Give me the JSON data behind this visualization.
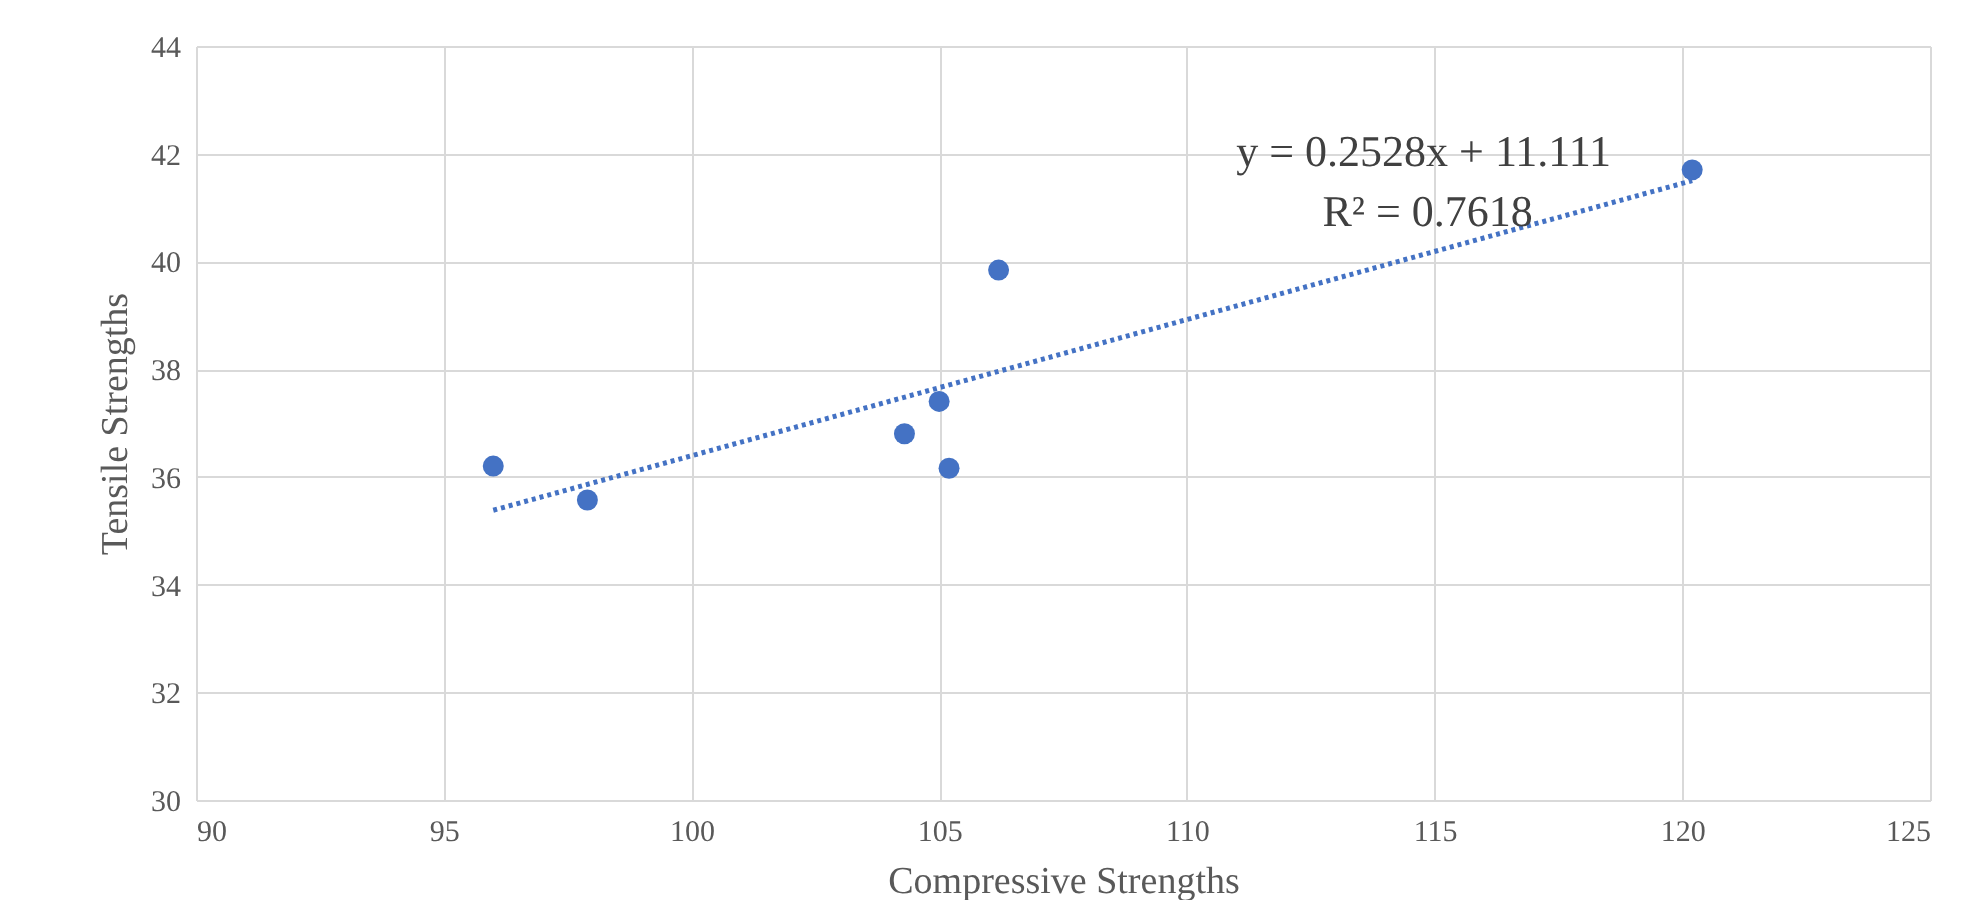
{
  "chart_data": {
    "type": "scatter",
    "xlabel": "Compressive Strengths",
    "ylabel": "Tensile Strengths",
    "xlim": [
      90,
      125
    ],
    "xticks": [
      90,
      95,
      100,
      105,
      110,
      115,
      120,
      125
    ],
    "ylim": [
      30,
      44
    ],
    "yticks": [
      30,
      32,
      34,
      36,
      38,
      40,
      42,
      44
    ],
    "grid": true,
    "series": [
      {
        "color": "#4472c4",
        "marker": "circle",
        "x": [
          96.0,
          97.9,
          104.3,
          105.0,
          105.2,
          106.2,
          120.2
        ],
        "values": [
          36.2,
          35.57,
          36.8,
          37.4,
          36.16,
          39.84,
          41.7
        ]
      },
      {
        "type": "line",
        "color": "#4472c4",
        "line_style": "dotted",
        "x": [
          96.0,
          120.2
        ],
        "values": [
          35.38,
          41.5
        ]
      }
    ],
    "annotations": [
      "y = 0.2528x + 11.111",
      "R² = 0.7618"
    ]
  }
}
